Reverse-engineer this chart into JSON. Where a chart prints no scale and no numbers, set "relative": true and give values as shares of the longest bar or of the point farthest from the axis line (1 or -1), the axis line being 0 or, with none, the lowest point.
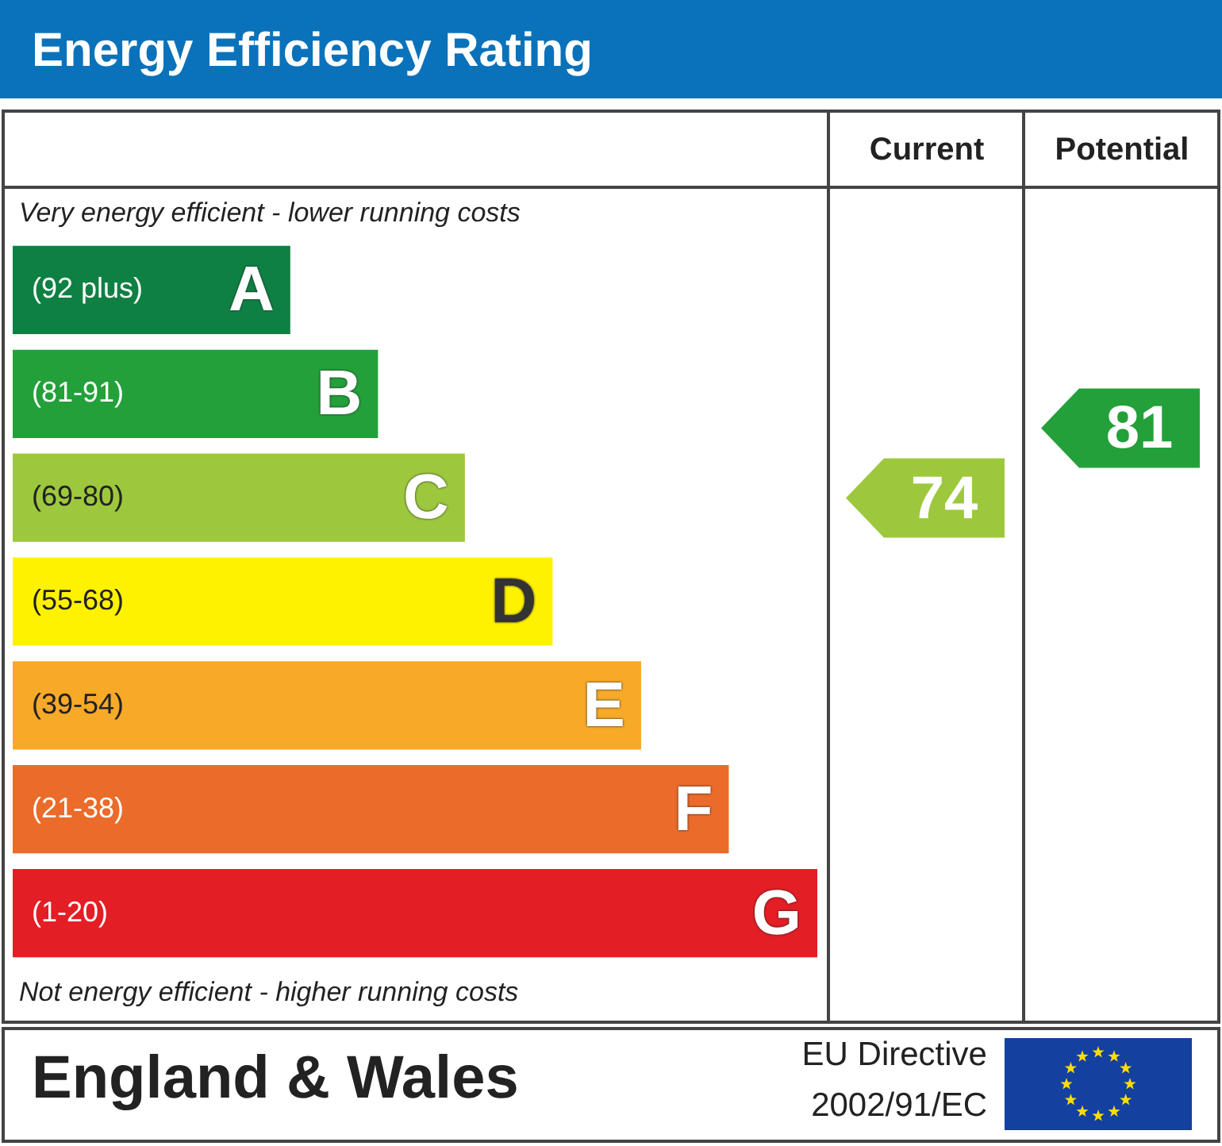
{
  "chart_data": {
    "type": "bar",
    "orientation": "horizontal",
    "relative": true,
    "title": "Energy Efficiency Rating",
    "categories": [
      "A",
      "B",
      "C",
      "D",
      "E",
      "F",
      "G"
    ],
    "values": [
      0.345,
      0.454,
      0.562,
      0.671,
      0.781,
      0.89,
      1
    ],
    "colors": [
      "#0f8043",
      "#23a03a",
      "#9dc83e",
      "#fff200",
      "#f7a928",
      "#ea6b2a",
      "#e31e25"
    ],
    "legend": false,
    "annotations": [
      "Very energy efficient - lower running costs",
      "Not energy efficient - higher running costs",
      "England & Wales",
      "EU Directive",
      "2002/91/EC",
      "Current",
      "Potential",
      "74",
      "81",
      "(92 plus)",
      "(81-91)",
      "(69-80)",
      "(55-68)",
      "(39-54)",
      "(21-38)",
      "(1-20)"
    ]
  }
}
